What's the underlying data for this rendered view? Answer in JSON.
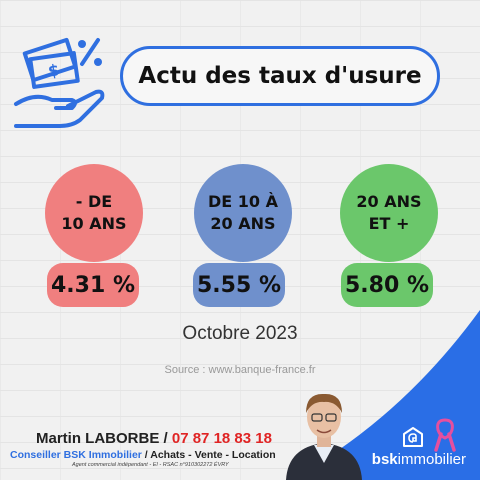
{
  "title": "Actu des taux d'usure",
  "categories": [
    {
      "label": "- DE\n10 ANS",
      "rate": "4.31 %",
      "color": "#f07f7f"
    },
    {
      "label": "DE 10 À\n20 ANS",
      "rate": "5.55 %",
      "color": "#6f90cc"
    },
    {
      "label": "20 ANS\nET +",
      "rate": "5.80 %",
      "color": "#6bc76b"
    }
  ],
  "period": "Octobre 2023",
  "source": "Source : www.banque-france.fr",
  "agent": {
    "name": "Martin LABORBE",
    "separator": "/",
    "phone": "07 87 18 83 18",
    "role": "Conseiller BSK Immobilier",
    "activities": "/ Achats - Vente - Location",
    "legal": "Agent commercial indépendant - EI - RSAC n°910302272 ÉVRY"
  },
  "brand": {
    "prefix": "bsk",
    "suffix": "immobilier"
  },
  "colors": {
    "accent": "#2f6fe0",
    "phone": "#e02424",
    "ribbon": "#e64f9e"
  }
}
